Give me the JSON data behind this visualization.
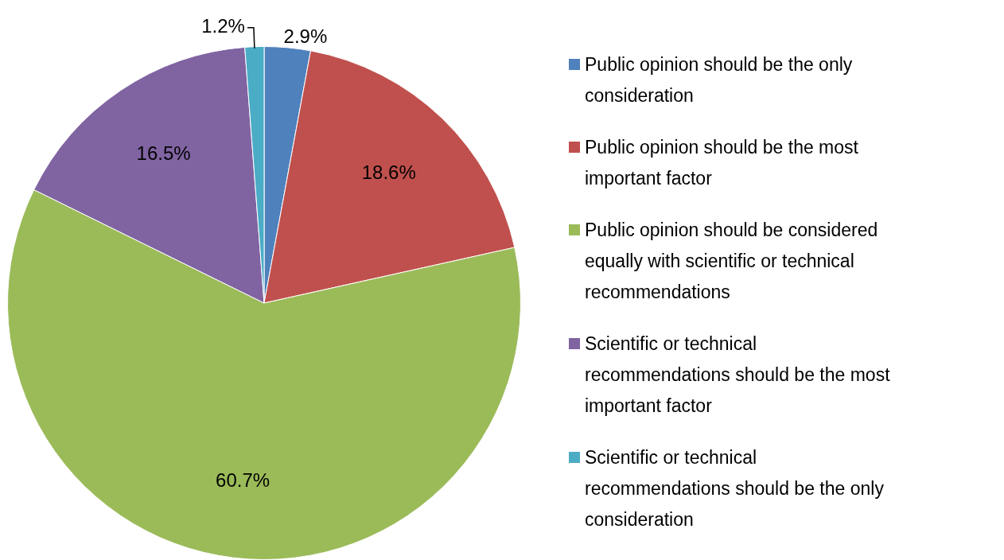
{
  "chart_data": {
    "type": "pie",
    "categories": [
      "Public opinion should be the only consideration",
      "Public opinion should be the most important factor",
      "Public opinion should be considered equally with scientific or technical recommendations",
      "Scientific or technical recommendations should be the most important factor",
      "Scientific or technical recommendations should be the only consideration"
    ],
    "values": [
      2.9,
      18.6,
      60.7,
      16.5,
      1.2
    ],
    "colors": [
      "#4f81bd",
      "#c0504d",
      "#9bbb59",
      "#8064a2",
      "#4bacc6"
    ],
    "value_labels": [
      "2.9%",
      "18.6%",
      "60.7%",
      "16.5%",
      "1.2%"
    ],
    "legend": "right"
  }
}
